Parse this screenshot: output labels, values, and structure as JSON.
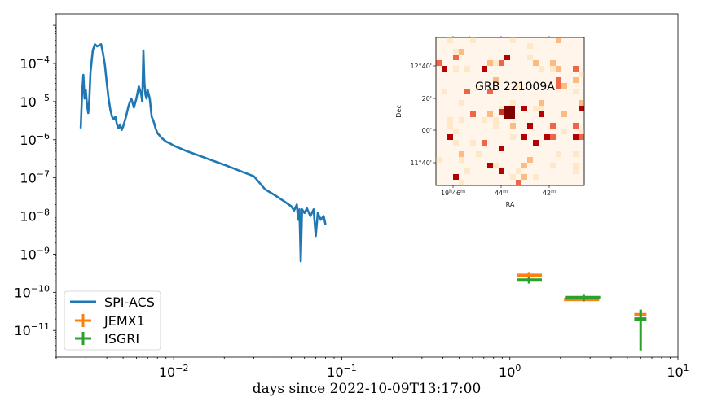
{
  "chart_data": {
    "type": "scatter",
    "title": "",
    "xlabel": "days since 2022-10-09T13:17:00",
    "ylabel": "",
    "xscale": "log",
    "yscale": "log",
    "xlim": [
      0.002,
      10
    ],
    "ylim": [
      2e-12,
      0.002
    ],
    "x_ticks": [
      {
        "value": 0.01,
        "base": "10",
        "exp": "−2"
      },
      {
        "value": 0.1,
        "base": "10",
        "exp": "−1"
      },
      {
        "value": 1,
        "base": "10",
        "exp": "0"
      },
      {
        "value": 10,
        "base": "10",
        "exp": "1"
      }
    ],
    "y_ticks": [
      {
        "value": 0.0001,
        "base": "10",
        "exp": "−4"
      },
      {
        "value": 1e-05,
        "base": "10",
        "exp": "−5"
      },
      {
        "value": 1e-06,
        "base": "10",
        "exp": "−6"
      },
      {
        "value": 1e-07,
        "base": "10",
        "exp": "−7"
      },
      {
        "value": 1e-08,
        "base": "10",
        "exp": "−8"
      },
      {
        "value": 1e-09,
        "base": "10",
        "exp": "−9"
      },
      {
        "value": 1e-10,
        "base": "10",
        "exp": "−10"
      },
      {
        "value": 1e-11,
        "base": "10",
        "exp": "−11"
      }
    ],
    "grid": false,
    "legend_position": "lower-left",
    "series": [
      {
        "name": "SPI-ACS",
        "kind": "line",
        "color": "#1f77b4",
        "x": [
          0.0028,
          0.00285,
          0.0029,
          0.00295,
          0.003,
          0.00305,
          0.0031,
          0.00315,
          0.0032,
          0.0033,
          0.0034,
          0.0035,
          0.0036,
          0.0037,
          0.0038,
          0.0039,
          0.004,
          0.0041,
          0.0042,
          0.0043,
          0.0044,
          0.0045,
          0.0046,
          0.0047,
          0.0048,
          0.0049,
          0.005,
          0.0052,
          0.0054,
          0.0056,
          0.0058,
          0.006,
          0.0062,
          0.0064,
          0.0065,
          0.0066,
          0.0067,
          0.0068,
          0.0069,
          0.007,
          0.0072,
          0.0074,
          0.0076,
          0.0078,
          0.008,
          0.0085,
          0.009,
          0.0095,
          0.01,
          0.012,
          0.015,
          0.02,
          0.025,
          0.03,
          0.035,
          0.04,
          0.045,
          0.05,
          0.052,
          0.054,
          0.055,
          0.056,
          0.057,
          0.058,
          0.06,
          0.062,
          0.065,
          0.068,
          0.07,
          0.072,
          0.075,
          0.078,
          0.08
        ],
        "y": [
          2e-06,
          1.5e-05,
          5e-05,
          1.2e-05,
          2e-05,
          8e-06,
          5e-06,
          1.2e-05,
          6e-05,
          0.00022,
          0.00032,
          0.00028,
          0.0003,
          0.00032,
          0.00018,
          9e-05,
          3e-05,
          1.2e-05,
          6e-06,
          4e-06,
          3.5e-06,
          4e-06,
          2.5e-06,
          2e-06,
          2.5e-06,
          1.8e-06,
          2.2e-06,
          4e-06,
          8e-06,
          1.2e-05,
          7e-06,
          1.2e-05,
          2.5e-05,
          1.6e-05,
          1e-05,
          0.00022,
          3e-05,
          1.5e-05,
          1.2e-05,
          2e-05,
          1.2e-05,
          4e-06,
          3e-06,
          2e-06,
          1.5e-06,
          1.1e-06,
          9e-07,
          8e-07,
          7e-07,
          5e-07,
          3.5e-07,
          2.2e-07,
          1.5e-07,
          1.1e-07,
          5e-08,
          3.5e-08,
          2.5e-08,
          1.8e-08,
          1.4e-08,
          2e-08,
          8e-09,
          1.5e-08,
          6.5e-10,
          1.5e-08,
          1.2e-08,
          1.6e-08,
          1e-08,
          1.5e-08,
          3e-09,
          1.2e-08,
          8e-09,
          1e-08,
          6e-09
        ]
      },
      {
        "name": "JEMX1",
        "kind": "errorbar",
        "color": "#ff7f0e",
        "x": [
          1.3,
          2.75,
          6.0
        ],
        "y": [
          2.8e-10,
          6.5e-11,
          2.6e-11
        ],
        "x_range": [
          [
            1.1,
            1.55
          ],
          [
            2.1,
            3.4
          ],
          [
            5.5,
            6.5
          ]
        ],
        "y_range": [
          [
            2.3e-10,
            3.4e-10
          ],
          [
            5.7e-11,
            7.5e-11
          ],
          [
            1.7e-11,
            3.5e-11
          ]
        ]
      },
      {
        "name": "ISGRI",
        "kind": "errorbar",
        "color": "#2ca02c",
        "x": [
          1.3,
          2.75,
          6.0
        ],
        "y": [
          2.1e-10,
          7.3e-11,
          2e-11
        ],
        "x_range": [
          [
            1.1,
            1.55
          ],
          [
            2.15,
            3.45
          ],
          [
            5.5,
            6.5
          ]
        ],
        "y_range": [
          [
            1.7e-10,
            2.6e-10
          ],
          [
            6e-11,
            8.6e-11
          ],
          [
            3e-12,
            3.5e-11
          ]
        ]
      }
    ],
    "inset": {
      "title": "GRB 221009A",
      "xlabel": "RA",
      "ylabel": "Dec",
      "x_ticks": [
        {
          "main": "19",
          "sup1": "h",
          "rest": "46",
          "sup2": "m"
        },
        {
          "main": "",
          "sup1": "",
          "rest": "44",
          "sup2": "m"
        },
        {
          "main": "",
          "sup1": "",
          "rest": "42",
          "sup2": "m"
        }
      ],
      "y_ticks": [
        "12°40'",
        "20'",
        "00'",
        "11°40'"
      ],
      "colormap": "OrRd",
      "background_color": "#fff5eb"
    }
  }
}
